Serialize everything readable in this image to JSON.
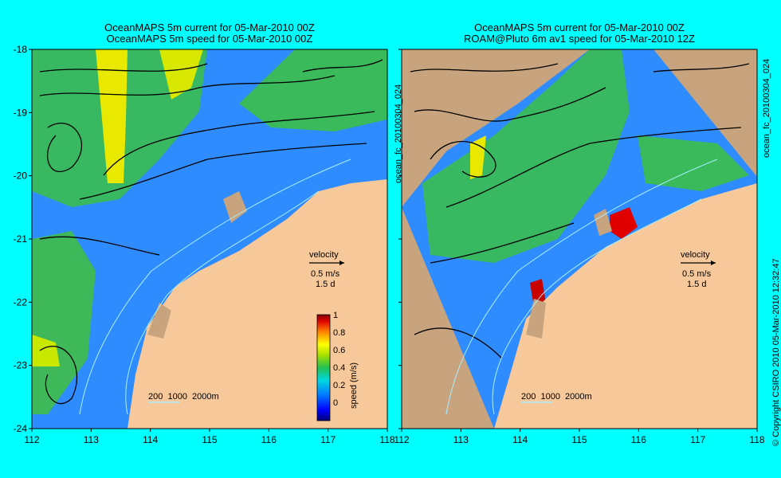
{
  "colors": {
    "background": "#00ffff",
    "land": "#f7c89a",
    "outside_domain": "#c8a47e",
    "contour": "#a8f0ff"
  },
  "panels": [
    {
      "title_line1": "OceanMAPS 5m current for 05-Mar-2010 00Z",
      "title_line2": "OceanMAPS 5m speed for 05-Mar-2010 00Z",
      "velocity_label": "velocity",
      "velocity_scale": "0.5 m/s",
      "velocity_days": "1.5 d",
      "contour_legend": "200  1000  2000m"
    },
    {
      "title_line1": "OceanMAPS 5m current for 05-Mar-2010 00Z",
      "title_line2": "ROAM@Pluto 6m av1 speed for 05-Mar-2010 12Z",
      "velocity_label": "velocity",
      "velocity_scale": "0.5 m/s",
      "velocity_days": "1.5 d",
      "contour_legend": "200  1000  2000m"
    }
  ],
  "side_label_left": "ocean_fc_20100304_024",
  "side_label_right": "ocean_fc_20100304_024",
  "copyright": "© Copyright CSIRO 2010   05-Mar-2010 12:32:47",
  "colorbar": {
    "label": "speed (m/s)",
    "ticks": [
      "1",
      "0.8",
      "0.6",
      "0.4",
      "0.2",
      "0"
    ]
  },
  "chart_data": {
    "type": "map",
    "x_ticks": [
      "112",
      "113",
      "114",
      "115",
      "116",
      "117",
      "118"
    ],
    "y_ticks": [
      "-18",
      "-19",
      "-20",
      "-21",
      "-22",
      "-23",
      "-24"
    ],
    "xlim": [
      112,
      118
    ],
    "ylim": [
      -24,
      -18
    ],
    "colorbar_range": [
      0,
      1
    ],
    "colorbar_unit": "speed (m/s)"
  }
}
